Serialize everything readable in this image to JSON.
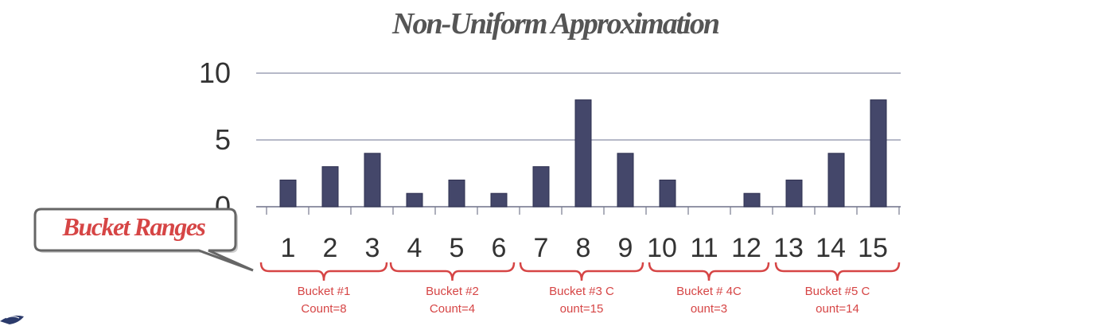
{
  "chart_data": {
    "type": "bar",
    "title": "Non-Uniform Approximation",
    "categories": [
      "1",
      "2",
      "3",
      "4",
      "5",
      "6",
      "7",
      "8",
      "9",
      "10",
      "11",
      "12",
      "13",
      "14",
      "15"
    ],
    "values": [
      2,
      3,
      4,
      1,
      2,
      1,
      3,
      8,
      4,
      2,
      0,
      1,
      2,
      4,
      8
    ],
    "ylim": [
      0,
      10
    ],
    "yticks": [
      "10",
      "5",
      "0"
    ],
    "xlabel": "",
    "ylabel": "",
    "grid": true,
    "colors": {
      "bar": "#44476a",
      "grid": "#8a8fa8",
      "accent": "#d64545"
    }
  },
  "buckets": [
    {
      "line1": "Bucket #1",
      "line2": "Count=8"
    },
    {
      "line1": "Bucket #2",
      "line2": "Count=4"
    },
    {
      "line1": "Bucket #3 C",
      "line2": "ount=15"
    },
    {
      "line1": "Bucket # 4C",
      "line2": "ount=3"
    },
    {
      "line1": "Bucket #5 C",
      "line2": "ount=14"
    }
  ],
  "callout": {
    "label": "Bucket Ranges"
  }
}
